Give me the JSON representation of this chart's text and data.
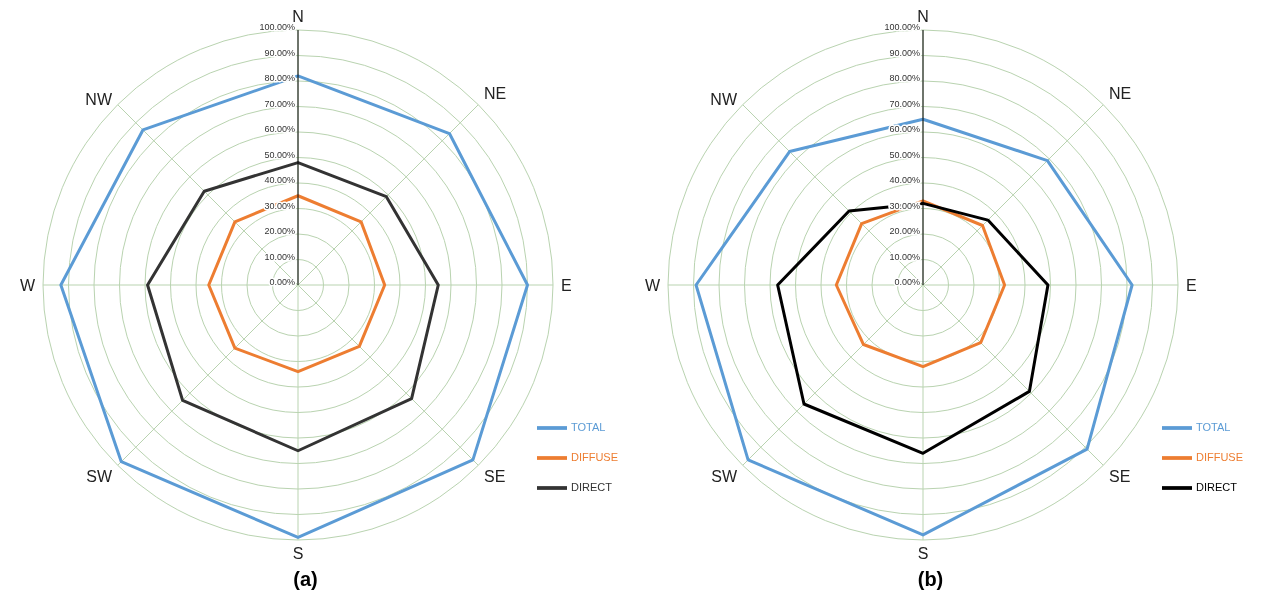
{
  "chart_data": [
    {
      "type": "radar",
      "title": "(a)",
      "categories": [
        "N",
        "NE",
        "E",
        "SE",
        "S",
        "SW",
        "W",
        "NW"
      ],
      "ylim": [
        0,
        100
      ],
      "yticks": [
        {
          "value": 0,
          "label": "0.00%"
        },
        {
          "value": 10,
          "label": "10.00%"
        },
        {
          "value": 20,
          "label": "20.00%"
        },
        {
          "value": 30,
          "label": "30.00%"
        },
        {
          "value": 40,
          "label": "40.00%"
        },
        {
          "value": 50,
          "label": "50.00%"
        },
        {
          "value": 60,
          "label": "60.00%"
        },
        {
          "value": 70,
          "label": "70.00%"
        },
        {
          "value": 80,
          "label": "80.00%"
        },
        {
          "value": 90,
          "label": "90.00%"
        },
        {
          "value": 100,
          "label": "100.00%"
        }
      ],
      "grid": true,
      "legend": "bottom right",
      "marker": "none",
      "series": [
        {
          "name": "TOTAL",
          "color": "#5b9bd5",
          "values": [
            82,
            84,
            90,
            97,
            99,
            98,
            93,
            86
          ]
        },
        {
          "name": "DIFFUSE",
          "color": "#ed7d31",
          "values": [
            35,
            35,
            34,
            34,
            34,
            35,
            35,
            35
          ]
        },
        {
          "name": "DIRECT",
          "color": "#333333",
          "values": [
            48,
            49,
            55,
            63,
            65,
            64,
            59,
            52
          ]
        }
      ]
    },
    {
      "type": "radar",
      "title": "(b)",
      "categories": [
        "N",
        "NE",
        "E",
        "SE",
        "S",
        "SW",
        "W",
        "NW"
      ],
      "ylim": [
        0,
        100
      ],
      "yticks": [
        {
          "value": 0,
          "label": "0.00%"
        },
        {
          "value": 10,
          "label": "10.00%"
        },
        {
          "value": 20,
          "label": "20.00%"
        },
        {
          "value": 30,
          "label": "30.00%"
        },
        {
          "value": 40,
          "label": "40.00%"
        },
        {
          "value": 50,
          "label": "50.00%"
        },
        {
          "value": 60,
          "label": "60.00%"
        },
        {
          "value": 70,
          "label": "70.00%"
        },
        {
          "value": 80,
          "label": "80.00%"
        },
        {
          "value": 90,
          "label": "90.00%"
        },
        {
          "value": 100,
          "label": "100.00%"
        }
      ],
      "grid": true,
      "legend": "bottom right",
      "marker": "none",
      "series": [
        {
          "name": "TOTAL",
          "color": "#5b9bd5",
          "values": [
            65,
            69,
            82,
            91,
            98,
            97,
            89,
            74
          ]
        },
        {
          "name": "DIFFUSE",
          "color": "#ed7d31",
          "values": [
            33,
            33,
            32,
            32,
            32,
            33,
            34,
            34
          ]
        },
        {
          "name": "DIRECT",
          "color": "#000000",
          "values": [
            32,
            36,
            49,
            59,
            66,
            66,
            57,
            41
          ]
        }
      ]
    }
  ]
}
